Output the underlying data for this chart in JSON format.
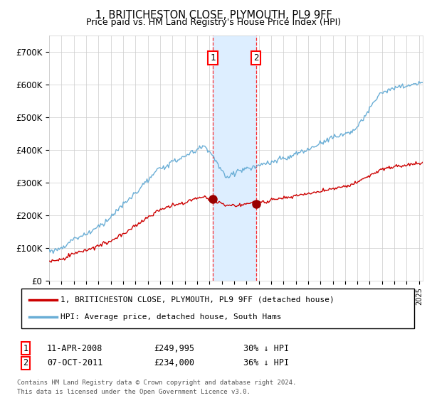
{
  "title": "1, BRITICHESTON CLOSE, PLYMOUTH, PL9 9FF",
  "subtitle": "Price paid vs. HM Land Registry's House Price Index (HPI)",
  "legend_line1": "1, BRITICHESTON CLOSE, PLYMOUTH, PL9 9FF (detached house)",
  "legend_line2": "HPI: Average price, detached house, South Hams",
  "transaction1_date": "11-APR-2008",
  "transaction1_price": "£249,995",
  "transaction1_hpi": "30% ↓ HPI",
  "transaction2_date": "07-OCT-2011",
  "transaction2_price": "£234,000",
  "transaction2_hpi": "36% ↓ HPI",
  "footnote1": "Contains HM Land Registry data © Crown copyright and database right 2024.",
  "footnote2": "This data is licensed under the Open Government Licence v3.0.",
  "hpi_color": "#6aaed6",
  "price_color": "#cc0000",
  "marker_color": "#990000",
  "shading_color": "#ddeeff",
  "grid_color": "#cccccc",
  "background_color": "#ffffff",
  "ylim": [
    0,
    750000
  ],
  "yticks": [
    0,
    100000,
    200000,
    300000,
    400000,
    500000,
    600000,
    700000
  ],
  "transaction1_x": 2008.28,
  "transaction2_x": 2011.77,
  "xmin": 1995,
  "xmax": 2025.3
}
